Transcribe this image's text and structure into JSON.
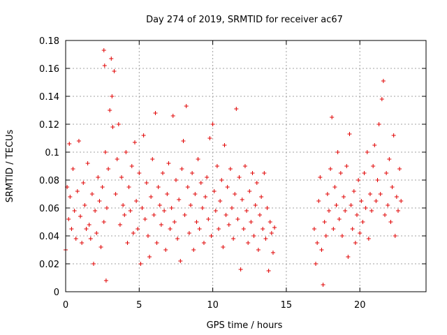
{
  "chart_data": {
    "type": "scatter",
    "title": "Day 274 of 2019, SRMTID for receiver ac67",
    "xlabel": "GPS time / hours",
    "ylabel": "SRMTID / TECUs",
    "xlim": [
      0,
      24.5
    ],
    "ylim": [
      0,
      0.18
    ],
    "xticks": [
      0,
      5,
      10,
      15,
      20
    ],
    "xtick_labels": [
      "0",
      "5",
      "10",
      "15",
      "20"
    ],
    "yticks": [
      0,
      0.02,
      0.04,
      0.06,
      0.08,
      0.1,
      0.12,
      0.14,
      0.16,
      0.18
    ],
    "ytick_labels": [
      "0",
      "0.02",
      "0.04",
      "0.06",
      "0.08",
      "0.1",
      "0.12",
      "0.14",
      "0.16",
      "0.18"
    ],
    "grid": true,
    "marker": "plus",
    "series": [
      {
        "name": "SRMTID",
        "color": "#e00000",
        "points": [
          [
            0.0,
            0.03
          ],
          [
            0.1,
            0.075
          ],
          [
            0.2,
            0.052
          ],
          [
            0.25,
            0.106
          ],
          [
            0.3,
            0.068
          ],
          [
            0.4,
            0.045
          ],
          [
            0.5,
            0.088
          ],
          [
            0.6,
            0.058
          ],
          [
            0.7,
            0.038
          ],
          [
            0.8,
            0.072
          ],
          [
            0.9,
            0.108
          ],
          [
            1.0,
            0.054
          ],
          [
            1.1,
            0.035
          ],
          [
            1.2,
            0.078
          ],
          [
            1.3,
            0.062
          ],
          [
            1.4,
            0.045
          ],
          [
            1.5,
            0.092
          ],
          [
            1.6,
            0.048
          ],
          [
            1.7,
            0.038
          ],
          [
            1.8,
            0.07
          ],
          [
            1.9,
            0.02
          ],
          [
            2.0,
            0.058
          ],
          [
            2.1,
            0.042
          ],
          [
            2.2,
            0.082
          ],
          [
            2.3,
            0.065
          ],
          [
            2.4,
            0.032
          ],
          [
            2.5,
            0.075
          ],
          [
            2.6,
            0.05
          ],
          [
            2.7,
            0.1
          ],
          [
            2.75,
            0.008
          ],
          [
            2.6,
            0.173
          ],
          [
            2.65,
            0.162
          ],
          [
            2.8,
            0.06
          ],
          [
            2.9,
            0.088
          ],
          [
            3.0,
            0.13
          ],
          [
            3.1,
            0.167
          ],
          [
            3.15,
            0.14
          ],
          [
            3.2,
            0.118
          ],
          [
            3.3,
            0.158
          ],
          [
            3.4,
            0.07
          ],
          [
            3.5,
            0.095
          ],
          [
            3.6,
            0.12
          ],
          [
            3.7,
            0.048
          ],
          [
            3.8,
            0.082
          ],
          [
            3.9,
            0.062
          ],
          [
            4.0,
            0.055
          ],
          [
            4.1,
            0.1
          ],
          [
            4.2,
            0.035
          ],
          [
            4.3,
            0.075
          ],
          [
            4.4,
            0.058
          ],
          [
            4.5,
            0.09
          ],
          [
            4.6,
            0.042
          ],
          [
            4.7,
            0.107
          ],
          [
            4.8,
            0.065
          ],
          [
            4.9,
            0.045
          ],
          [
            5.0,
            0.085
          ],
          [
            5.1,
            0.02
          ],
          [
            5.2,
            0.06
          ],
          [
            5.3,
            0.112
          ],
          [
            5.4,
            0.052
          ],
          [
            5.5,
            0.078
          ],
          [
            5.6,
            0.04
          ],
          [
            5.7,
            0.025
          ],
          [
            5.8,
            0.068
          ],
          [
            5.9,
            0.095
          ],
          [
            6.0,
            0.055
          ],
          [
            6.1,
            0.128
          ],
          [
            6.2,
            0.035
          ],
          [
            6.3,
            0.075
          ],
          [
            6.4,
            0.062
          ],
          [
            6.5,
            0.048
          ],
          [
            6.6,
            0.085
          ],
          [
            6.7,
            0.058
          ],
          [
            6.8,
            0.03
          ],
          [
            6.9,
            0.07
          ],
          [
            7.0,
            0.092
          ],
          [
            7.1,
            0.045
          ],
          [
            7.2,
            0.06
          ],
          [
            7.3,
            0.126
          ],
          [
            7.4,
            0.05
          ],
          [
            7.5,
            0.08
          ],
          [
            7.6,
            0.038
          ],
          [
            7.7,
            0.066
          ],
          [
            7.8,
            0.022
          ],
          [
            7.9,
            0.088
          ],
          [
            8.0,
            0.108
          ],
          [
            8.1,
            0.055
          ],
          [
            8.2,
            0.133
          ],
          [
            8.3,
            0.075
          ],
          [
            8.4,
            0.042
          ],
          [
            8.5,
            0.062
          ],
          [
            8.6,
            0.085
          ],
          [
            8.7,
            0.03
          ],
          [
            8.8,
            0.07
          ],
          [
            8.9,
            0.05
          ],
          [
            9.0,
            0.095
          ],
          [
            9.1,
            0.045
          ],
          [
            9.2,
            0.078
          ],
          [
            9.3,
            0.06
          ],
          [
            9.4,
            0.035
          ],
          [
            9.5,
            0.068
          ],
          [
            9.6,
            0.082
          ],
          [
            9.7,
            0.052
          ],
          [
            9.8,
            0.11
          ],
          [
            9.9,
            0.04
          ],
          [
            10.0,
            0.12
          ],
          [
            10.1,
            0.072
          ],
          [
            10.2,
            0.058
          ],
          [
            10.3,
            0.09
          ],
          [
            10.4,
            0.045
          ],
          [
            10.5,
            0.065
          ],
          [
            10.6,
            0.08
          ],
          [
            10.7,
            0.032
          ],
          [
            10.8,
            0.105
          ],
          [
            10.9,
            0.055
          ],
          [
            11.0,
            0.075
          ],
          [
            11.1,
            0.048
          ],
          [
            11.2,
            0.088
          ],
          [
            11.3,
            0.06
          ],
          [
            11.4,
            0.038
          ],
          [
            11.5,
            0.07
          ],
          [
            11.6,
            0.131
          ],
          [
            11.7,
            0.052
          ],
          [
            11.8,
            0.082
          ],
          [
            11.9,
            0.016
          ],
          [
            12.0,
            0.066
          ],
          [
            12.1,
            0.045
          ],
          [
            12.2,
            0.09
          ],
          [
            12.3,
            0.058
          ],
          [
            12.4,
            0.035
          ],
          [
            12.5,
            0.072
          ],
          [
            12.6,
            0.05
          ],
          [
            12.7,
            0.085
          ],
          [
            12.8,
            0.04
          ],
          [
            12.9,
            0.062
          ],
          [
            13.0,
            0.078
          ],
          [
            13.1,
            0.03
          ],
          [
            13.2,
            0.055
          ],
          [
            13.3,
            0.068
          ],
          [
            13.4,
            0.045
          ],
          [
            13.5,
            0.085
          ],
          [
            13.6,
            0.038
          ],
          [
            13.7,
            0.06
          ],
          [
            13.8,
            0.015
          ],
          [
            13.9,
            0.05
          ],
          [
            14.0,
            0.042
          ],
          [
            14.1,
            0.028
          ],
          [
            14.2,
            0.046
          ],
          [
            16.9,
            0.045
          ],
          [
            17.0,
            0.02
          ],
          [
            17.1,
            0.035
          ],
          [
            17.2,
            0.065
          ],
          [
            17.3,
            0.082
          ],
          [
            17.4,
            0.03
          ],
          [
            17.5,
            0.005
          ],
          [
            17.6,
            0.05
          ],
          [
            17.7,
            0.04
          ],
          [
            17.8,
            0.07
          ],
          [
            17.9,
            0.058
          ],
          [
            18.0,
            0.088
          ],
          [
            18.1,
            0.125
          ],
          [
            18.2,
            0.045
          ],
          [
            18.3,
            0.075
          ],
          [
            18.4,
            0.062
          ],
          [
            18.5,
            0.1
          ],
          [
            18.6,
            0.052
          ],
          [
            18.7,
            0.085
          ],
          [
            18.8,
            0.04
          ],
          [
            18.9,
            0.068
          ],
          [
            19.0,
            0.058
          ],
          [
            19.1,
            0.09
          ],
          [
            19.2,
            0.025
          ],
          [
            19.3,
            0.113
          ],
          [
            19.4,
            0.062
          ],
          [
            19.5,
            0.045
          ],
          [
            19.6,
            0.072
          ],
          [
            19.7,
            0.035
          ],
          [
            19.8,
            0.055
          ],
          [
            19.9,
            0.08
          ],
          [
            20.0,
            0.042
          ],
          [
            20.1,
            0.065
          ],
          [
            20.2,
            0.05
          ],
          [
            20.3,
            0.085
          ],
          [
            20.4,
            0.06
          ],
          [
            20.5,
            0.1
          ],
          [
            20.6,
            0.038
          ],
          [
            20.7,
            0.07
          ],
          [
            20.8,
            0.058
          ],
          [
            20.9,
            0.09
          ],
          [
            21.0,
            0.105
          ],
          [
            21.1,
            0.065
          ],
          [
            21.2,
            0.08
          ],
          [
            21.3,
            0.12
          ],
          [
            21.4,
            0.07
          ],
          [
            21.5,
            0.138
          ],
          [
            21.6,
            0.151
          ],
          [
            21.7,
            0.055
          ],
          [
            21.8,
            0.085
          ],
          [
            21.9,
            0.062
          ],
          [
            22.0,
            0.095
          ],
          [
            22.1,
            0.05
          ],
          [
            22.2,
            0.075
          ],
          [
            22.3,
            0.112
          ],
          [
            22.4,
            0.04
          ],
          [
            22.5,
            0.068
          ],
          [
            22.6,
            0.058
          ],
          [
            22.7,
            0.088
          ],
          [
            22.8,
            0.065
          ]
        ]
      }
    ]
  }
}
